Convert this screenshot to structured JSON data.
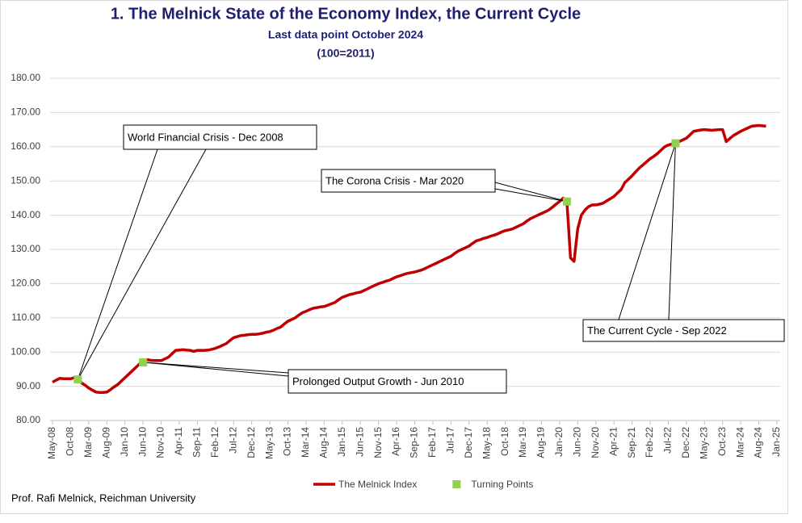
{
  "chart_data": {
    "type": "line",
    "title": "1.  The Melnick State of the Economy Index, the Current Cycle",
    "subtitle": "Last data point October 2024",
    "subtitle2": "(100=2011)",
    "source": "Prof. Rafi Melnick, Reichman University",
    "categories": [
      "May-08",
      null,
      null,
      null,
      null,
      "Oct-08",
      null,
      null,
      null,
      null,
      "Mar-09",
      null,
      null,
      null,
      null,
      "Aug-09",
      null,
      null,
      null,
      null,
      "Jan-10",
      null,
      null,
      null,
      null,
      "Jun-10",
      null,
      null,
      null,
      null,
      "Nov-10",
      null,
      null,
      null,
      null,
      "Apr-11",
      null,
      null,
      null,
      null,
      "Sep-11",
      null,
      null,
      null,
      null,
      "Feb-12",
      null,
      null,
      null,
      null,
      "Jul-12",
      null,
      null,
      null,
      null,
      "Dec-12",
      null,
      null,
      null,
      null,
      "May-13",
      null,
      null,
      null,
      null,
      "Oct-13",
      null,
      null,
      null,
      null,
      "Mar-14",
      null,
      null,
      null,
      null,
      "Aug-14",
      null,
      null,
      null,
      null,
      "Jan-15",
      null,
      null,
      null,
      null,
      "Jun-15",
      null,
      null,
      null,
      null,
      "Nov-15",
      null,
      null,
      null,
      null,
      "Apr-16",
      null,
      null,
      null,
      null,
      "Sep-16",
      null,
      null,
      null,
      null,
      "Feb-17",
      null,
      null,
      null,
      null,
      "Jul-17",
      null,
      null,
      null,
      null,
      "Dec-17",
      null,
      null,
      null,
      null,
      "May-18",
      null,
      null,
      null,
      null,
      "Oct-18",
      null,
      null,
      null,
      null,
      "Mar-19",
      null,
      null,
      null,
      null,
      "Aug-19",
      null,
      null,
      null,
      null,
      "Jan-20",
      null,
      null,
      null,
      null,
      "Jun-20",
      null,
      null,
      null,
      null,
      "Nov-20",
      null,
      null,
      null,
      null,
      "Apr-21",
      null,
      null,
      null,
      null,
      "Sep-21",
      null,
      null,
      null,
      null,
      "Feb-22",
      null,
      null,
      null,
      null,
      "Jul-22",
      null,
      null,
      null,
      null,
      "Dec-22",
      null,
      null,
      null,
      null,
      "May-23",
      null,
      null,
      null,
      null,
      "Oct-23",
      null,
      null,
      null,
      null,
      "Mar-24",
      null,
      null,
      null,
      null,
      "Aug-24",
      null,
      null,
      null,
      null,
      "Jan-25"
    ],
    "series": [
      {
        "name": "The Melnick Index",
        "color": "#c00000",
        "values": [
          91.2,
          91.8,
          92.3,
          92.2,
          92.2,
          92.2,
          92.5,
          92.0,
          91.0,
          90.3,
          89.5,
          88.9,
          88.3,
          88.2,
          88.2,
          88.3,
          89.0,
          89.8,
          90.5,
          91.5,
          92.5,
          93.5,
          94.5,
          95.5,
          96.5,
          97.0,
          97.8,
          97.6,
          97.5,
          97.5,
          97.5,
          98.0,
          98.5,
          99.5,
          100.5,
          100.6,
          100.7,
          100.6,
          100.5,
          100.2,
          100.5,
          100.5,
          100.5,
          100.6,
          100.8,
          101.1,
          101.5,
          102.0,
          102.5,
          103.4,
          104.2,
          104.5,
          104.8,
          104.9,
          105.1,
          105.2,
          105.2,
          105.3,
          105.5,
          105.8,
          106.0,
          106.4,
          106.9,
          107.3,
          108.2,
          109.0,
          109.5,
          110.0,
          110.8,
          111.5,
          111.9,
          112.4,
          112.8,
          113.0,
          113.2,
          113.3,
          113.7,
          114.1,
          114.5,
          115.3,
          116.0,
          116.4,
          116.8,
          117.0,
          117.3,
          117.5,
          118.0,
          118.5,
          119.0,
          119.5,
          120.0,
          120.3,
          120.7,
          121.0,
          121.5,
          122.0,
          122.3,
          122.7,
          123.0,
          123.2,
          123.4,
          123.7,
          124.0,
          124.5,
          125.0,
          125.5,
          126.0,
          126.5,
          127.0,
          127.5,
          128.0,
          128.8,
          129.5,
          130.0,
          130.5,
          131.0,
          131.8,
          132.5,
          132.8,
          133.2,
          133.5,
          133.9,
          134.2,
          134.6,
          135.1,
          135.5,
          135.7,
          136.0,
          136.5,
          137.0,
          137.5,
          138.3,
          139.0,
          139.5,
          140.0,
          140.5,
          141.0,
          141.5,
          142.3,
          143.2,
          144.0,
          145.0,
          144.0,
          127.5,
          126.5,
          136.0,
          140.0,
          141.5,
          142.5,
          143.0,
          143.0,
          143.2,
          143.5,
          144.2,
          144.8,
          145.5,
          146.5,
          147.5,
          149.5,
          150.5,
          151.5,
          152.7,
          153.8,
          154.7,
          155.6,
          156.5,
          157.2,
          158.0,
          159.0,
          160.0,
          160.5,
          160.8,
          161.0,
          161.5,
          162.0,
          162.5,
          163.5,
          164.5,
          164.7,
          164.9,
          165.0,
          164.9,
          164.8,
          164.9,
          165.0,
          165.0,
          161.5,
          162.4,
          163.3,
          163.9,
          164.5,
          165.0,
          165.5,
          166.0,
          166.1,
          166.2,
          166.1,
          166.0,
          null,
          null,
          null
        ]
      },
      {
        "name": "Turning Points",
        "color": "#92d050",
        "type": "scatter",
        "values": [
          null,
          null,
          null,
          null,
          null,
          null,
          null,
          92.0,
          null,
          null,
          null,
          null,
          null,
          null,
          null,
          null,
          null,
          null,
          null,
          null,
          null,
          null,
          null,
          null,
          null,
          97.0,
          null,
          null,
          null,
          null,
          null,
          null,
          null,
          null,
          null,
          null,
          null,
          null,
          null,
          null,
          null,
          null,
          null,
          null,
          null,
          null,
          null,
          null,
          null,
          null,
          null,
          null,
          null,
          null,
          null,
          null,
          null,
          null,
          null,
          null,
          null,
          null,
          null,
          null,
          null,
          null,
          null,
          null,
          null,
          null,
          null,
          null,
          null,
          null,
          null,
          null,
          null,
          null,
          null,
          null,
          null,
          null,
          null,
          null,
          null,
          null,
          null,
          null,
          null,
          null,
          null,
          null,
          null,
          null,
          null,
          null,
          null,
          null,
          null,
          null,
          null,
          null,
          null,
          null,
          null,
          null,
          null,
          null,
          null,
          null,
          null,
          null,
          null,
          null,
          null,
          null,
          null,
          null,
          null,
          null,
          null,
          null,
          null,
          null,
          null,
          null,
          null,
          null,
          null,
          null,
          null,
          null,
          null,
          null,
          null,
          null,
          null,
          null,
          null,
          null,
          null,
          null,
          144.0,
          null,
          null,
          null,
          null,
          null,
          null,
          null,
          null,
          null,
          null,
          null,
          null,
          null,
          null,
          null,
          null,
          null,
          null,
          null,
          null,
          null,
          null,
          null,
          null,
          null,
          null,
          null,
          null,
          null,
          161.0,
          null,
          null,
          null,
          null,
          null,
          null,
          null,
          null,
          null,
          null,
          null,
          null,
          null,
          null,
          null,
          null,
          null,
          null,
          null,
          null,
          null,
          null,
          null,
          null,
          null,
          null,
          null,
          null
        ]
      }
    ],
    "annotations": [
      "World Financial Crisis - Dec 2008",
      "Prolonged Output Growth - Jun 2010",
      "The Corona Crisis - Mar 2020",
      "The Current Cycle - Sep 2022"
    ],
    "ylim": [
      80,
      180
    ],
    "yticks": [
      {
        "value": 80,
        "label": "80.00"
      },
      {
        "value": 90,
        "label": "90.00"
      },
      {
        "value": 100,
        "label": "100.00"
      },
      {
        "value": 110,
        "label": "110.00"
      },
      {
        "value": 120,
        "label": "120.00"
      },
      {
        "value": 130,
        "label": "130.00"
      },
      {
        "value": 140,
        "label": "140.00"
      },
      {
        "value": 150,
        "label": "150.00"
      },
      {
        "value": 160,
        "label": "160.00"
      },
      {
        "value": 170,
        "label": "170.00"
      },
      {
        "value": 180,
        "label": "180.00"
      }
    ],
    "grid": true,
    "legend": "bottom"
  }
}
